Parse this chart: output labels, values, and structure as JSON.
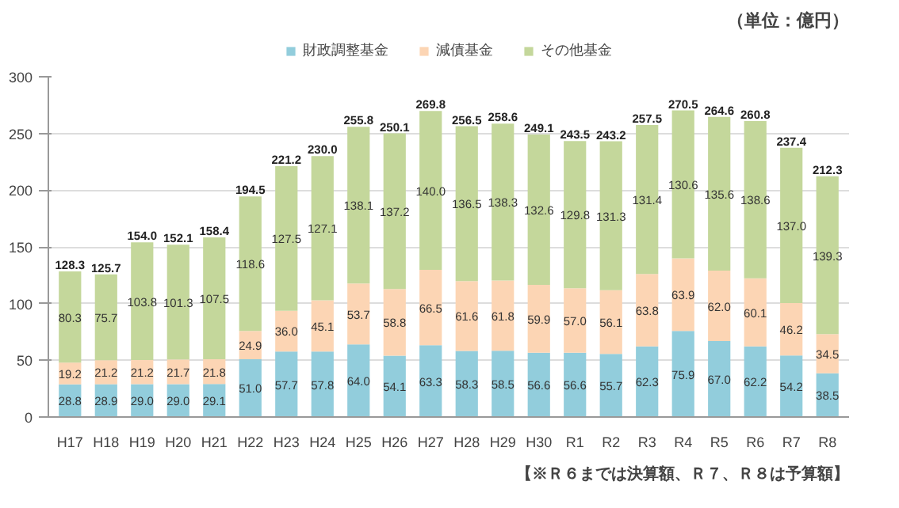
{
  "chart_data": {
    "type": "bar",
    "stacked": true,
    "categories": [
      "H17",
      "H18",
      "H19",
      "H20",
      "H21",
      "H22",
      "H23",
      "H24",
      "H25",
      "H26",
      "H27",
      "H28",
      "H29",
      "H30",
      "R1",
      "R2",
      "R3",
      "R4",
      "R5",
      "R6",
      "R7",
      "R8"
    ],
    "series": [
      {
        "name": "財政調整基金",
        "color": "#92cddc",
        "values": [
          28.8,
          28.9,
          29.0,
          29.0,
          29.1,
          51.0,
          57.7,
          57.8,
          64.0,
          54.1,
          63.3,
          58.3,
          58.5,
          56.6,
          56.6,
          55.7,
          62.3,
          75.9,
          67.0,
          62.2,
          54.2,
          38.5
        ],
        "value_labels": [
          "28.8",
          "28.9",
          "29.0",
          "29.0",
          "29.1",
          "51.0",
          "57.7",
          "57.8",
          "64.0",
          "54.1",
          "63.3",
          "58.3",
          "58.5",
          "56.6",
          "56.6",
          "55.7",
          "62.3",
          "75.9",
          "67.0",
          "62.2",
          "54.2",
          "38.5"
        ]
      },
      {
        "name": "減債基金",
        "color": "#fcd5b4",
        "values": [
          19.2,
          21.2,
          21.2,
          21.7,
          21.8,
          24.9,
          36.0,
          45.1,
          53.7,
          58.8,
          66.5,
          61.6,
          61.8,
          59.9,
          57.0,
          56.1,
          63.8,
          63.9,
          62.0,
          60.1,
          46.2,
          34.5
        ],
        "value_labels": [
          "19.2",
          "21.2",
          "21.2",
          "21.7",
          "21.8",
          "24.9",
          "36.0",
          "45.1",
          "53.7",
          "58.8",
          "66.5",
          "61.6",
          "61.8",
          "59.9",
          "57.0",
          "56.1",
          "63.8",
          "63.9",
          "62.0",
          "60.1",
          "46.2",
          "34.5"
        ]
      },
      {
        "name": "その他基金",
        "color": "#c4d79b",
        "values": [
          80.3,
          75.7,
          103.8,
          101.3,
          107.5,
          118.6,
          127.5,
          127.1,
          138.1,
          137.2,
          140.0,
          136.5,
          138.3,
          132.6,
          129.8,
          131.3,
          131.4,
          130.6,
          135.6,
          138.6,
          137.0,
          139.3
        ],
        "value_labels": [
          "80.3",
          "75.7",
          "103.8",
          "101.3",
          "107.5",
          "118.6",
          "127.5",
          "127.1",
          "138.1",
          "137.2",
          "140.0",
          "136.5",
          "138.3",
          "132.6",
          "129.8",
          "131.3",
          "131.4",
          "130.6",
          "135.6",
          "138.6",
          "137.0",
          "139.3"
        ]
      }
    ],
    "totals": [
      "128.3",
      "125.7",
      "154.0",
      "152.1",
      "158.4",
      "194.5",
      "221.2",
      "230.0",
      "255.8",
      "250.1",
      "269.8",
      "256.5",
      "258.6",
      "249.1",
      "243.5",
      "243.2",
      "257.5",
      "270.5",
      "264.6",
      "260.8",
      "237.4",
      "212.3"
    ],
    "ylim": [
      0,
      300
    ],
    "yticks": [
      0,
      50,
      100,
      150,
      200,
      250,
      300
    ],
    "grid": "y",
    "legend": "top",
    "annotations": [
      "（単位：億円）",
      "【※Ｒ６までは決算額、Ｒ７、Ｒ８は予算額】"
    ]
  }
}
